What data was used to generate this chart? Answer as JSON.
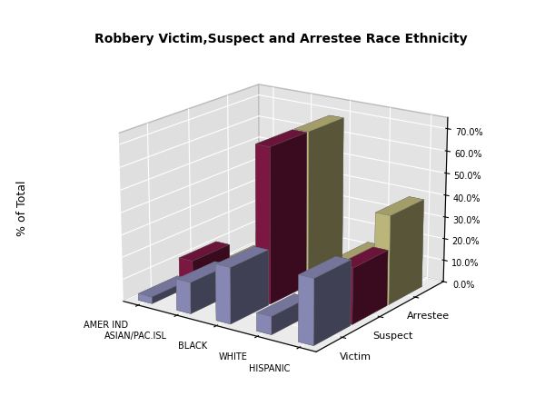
{
  "title": "Robbery Victim,Suspect and Arrestee Race Ethnicity",
  "ylabel": "% of Total",
  "categories": [
    "AMER IND",
    "ASIAN/PAC.ISL",
    "BLACK",
    "WHITE",
    "HISPANIC"
  ],
  "series_labels": [
    "Victim",
    "Suspect",
    "Arrestee"
  ],
  "values": {
    "Victim": [
      3,
      14,
      25,
      8,
      29
    ],
    "Suspect": [
      11,
      9,
      70,
      5,
      25
    ],
    "Arrestee": [
      1,
      19,
      70,
      15,
      40
    ]
  },
  "colors": {
    "Victim": "#9999cc",
    "Suspect": "#8b1a4a",
    "Arrestee": "#d4cd8a"
  },
  "zticks": [
    0,
    10,
    20,
    30,
    40,
    50,
    60,
    70
  ],
  "zlim": [
    0,
    75
  ],
  "floor_color": "#aaaaaa",
  "left_wall_color": "#b0b0b0",
  "back_wall_color": "#cccccc"
}
